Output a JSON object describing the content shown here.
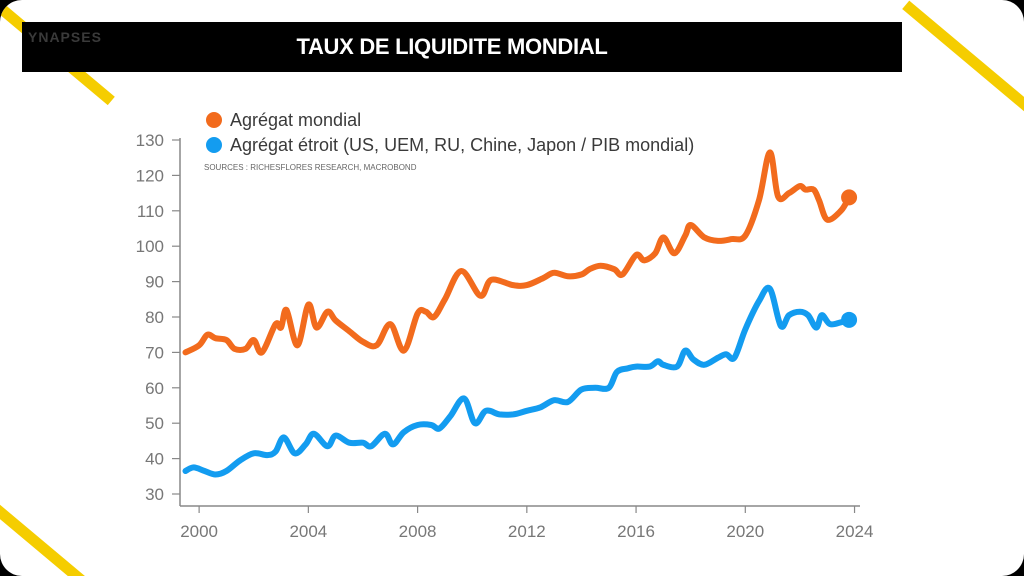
{
  "brand": {
    "logo_text": "YNAPSES"
  },
  "header": {
    "title": "TAUX DE LIQUIDITE MONDIAL"
  },
  "colors": {
    "accent_yellow": "#f5cd00",
    "series_orange": "#f26b1d",
    "series_blue": "#139cf0",
    "axis": "#888888"
  },
  "chart_data": {
    "type": "line",
    "title": "TAUX DE LIQUIDITE MONDIAL",
    "source": "SOURCES : RICHESFLORES RESEARCH, MACROBOND",
    "xlabel": "",
    "ylabel": "",
    "xlim": [
      1999.3,
      2024.2
    ],
    "ylim": [
      30,
      130
    ],
    "x_ticks": [
      2000,
      2004,
      2008,
      2012,
      2016,
      2020,
      2024
    ],
    "y_ticks": [
      30,
      40,
      50,
      60,
      70,
      80,
      90,
      100,
      110,
      120,
      130
    ],
    "legend_position": "top-left",
    "grid": false,
    "series": [
      {
        "name": "Agrégat mondial",
        "color": "#f26b1d",
        "x": [
          1999.5,
          2000.0,
          2000.3,
          2000.6,
          2001.0,
          2001.3,
          2001.7,
          2002.0,
          2002.3,
          2002.8,
          2003.0,
          2003.2,
          2003.6,
          2004.0,
          2004.3,
          2004.7,
          2005.0,
          2005.5,
          2006.0,
          2006.5,
          2007.0,
          2007.5,
          2008.0,
          2008.3,
          2008.6,
          2009.0,
          2009.6,
          2010.3,
          2010.7,
          2011.5,
          2012.0,
          2012.6,
          2013.0,
          2013.5,
          2014.0,
          2014.3,
          2014.7,
          2015.2,
          2015.5,
          2016.0,
          2016.3,
          2016.7,
          2017.0,
          2017.4,
          2017.8,
          2018.0,
          2018.5,
          2019.0,
          2019.5,
          2020.0,
          2020.5,
          2020.9,
          2021.2,
          2021.6,
          2022.0,
          2022.2,
          2022.5,
          2022.7,
          2023.0,
          2023.5,
          2023.8
        ],
        "values": [
          70,
          72,
          75,
          74,
          73.5,
          71,
          71,
          73.5,
          70,
          78,
          77,
          82,
          72,
          83.5,
          77,
          81.5,
          79,
          76,
          73,
          72,
          78,
          70.5,
          81,
          81.5,
          80,
          85,
          93,
          86,
          90.5,
          89,
          89,
          91,
          92.5,
          91.5,
          92,
          93.5,
          94.5,
          93.5,
          92,
          97.5,
          96,
          98,
          102.5,
          98,
          103,
          106,
          102.5,
          101.5,
          102,
          103,
          113,
          126.5,
          114,
          115,
          117,
          116,
          116,
          113,
          107.5,
          110,
          113.8
        ]
      },
      {
        "name": "Agrégat étroit (US, UEM, RU, Chine, Japon / PIB mondial)",
        "color": "#139cf0",
        "x": [
          1999.5,
          1999.8,
          2000.2,
          2000.6,
          2001.0,
          2001.5,
          2002.0,
          2002.5,
          2002.8,
          2003.1,
          2003.5,
          2003.9,
          2004.2,
          2004.7,
          2005.0,
          2005.5,
          2006.0,
          2006.3,
          2006.8,
          2007.1,
          2007.5,
          2008.0,
          2008.5,
          2008.8,
          2009.2,
          2009.7,
          2010.1,
          2010.5,
          2011.0,
          2011.5,
          2012.0,
          2012.5,
          2013.0,
          2013.5,
          2014.0,
          2014.5,
          2015.0,
          2015.3,
          2015.7,
          2016.0,
          2016.5,
          2016.8,
          2017.0,
          2017.5,
          2017.8,
          2018.1,
          2018.5,
          2019.0,
          2019.3,
          2019.6,
          2020.0,
          2020.5,
          2020.9,
          2021.3,
          2021.6,
          2022.0,
          2022.3,
          2022.6,
          2022.8,
          2023.1,
          2023.5,
          2023.8
        ],
        "values": [
          36.5,
          37.5,
          36.5,
          35.5,
          36.5,
          39.5,
          41.5,
          41,
          42,
          46,
          41.5,
          44,
          47,
          43.5,
          46.5,
          44.5,
          44.5,
          43.5,
          47,
          44,
          47.5,
          49.5,
          49.5,
          48.5,
          52,
          57,
          50,
          53.5,
          52.5,
          52.5,
          53.5,
          54.5,
          56.5,
          56,
          59.5,
          60,
          60,
          64.5,
          65.5,
          66,
          66,
          67.5,
          66.5,
          66,
          70.5,
          68,
          66.5,
          68.5,
          69.5,
          68.5,
          76.5,
          84.5,
          88,
          77.5,
          80.5,
          81.5,
          80.5,
          77,
          80.5,
          78,
          78.5,
          79.2
        ]
      }
    ]
  }
}
